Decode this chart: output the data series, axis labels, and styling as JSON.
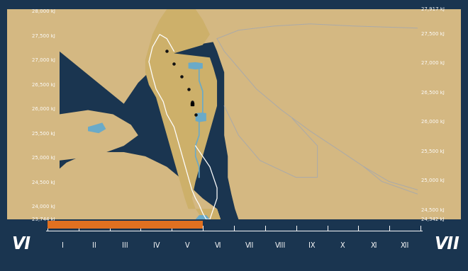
{
  "legend_label_left": "VI",
  "legend_label_right": "VII",
  "left_axis_labels": [
    "28,000 kJ",
    "27,500 kJ",
    "27,000 kJ",
    "26,500 kJ",
    "26,000 kJ",
    "25,500 kJ",
    "25,000 kJ",
    "24,500 kJ",
    "24,000 kJ",
    "23,744 kJ"
  ],
  "left_axis_values": [
    28000,
    27500,
    27000,
    26500,
    26000,
    25500,
    25000,
    24500,
    24000,
    23744
  ],
  "right_axis_labels": [
    "27,917 kJ",
    "27,500 kJ",
    "27,000 kJ",
    "26,500 kJ",
    "26,000 kJ",
    "25,500 kJ",
    "25,000 kJ",
    "24,500 kJ",
    "24,342 kJ"
  ],
  "right_axis_values": [
    27917,
    27500,
    27000,
    26500,
    26000,
    25500,
    25000,
    24500,
    24342
  ],
  "month_ticks": [
    "I",
    "II",
    "III",
    "IV",
    "V",
    "VI",
    "VII",
    "VIII",
    "IX",
    "X",
    "XI",
    "XII"
  ],
  "bar_color": "#E07020",
  "sea_color": "#4A7FA0",
  "land_color": "#D4B882",
  "land_color2": "#C8A86A",
  "water_color": "#6AAAC8",
  "border_bg_dark": "#1A3550",
  "left_panel_color": "#D4B882",
  "right_panel_color": "#D4B882",
  "border_line_color": "#AAAAAA",
  "israel_border_color": "#FFFFFF",
  "city_color": "#111111",
  "river_color": "#88BBDD"
}
